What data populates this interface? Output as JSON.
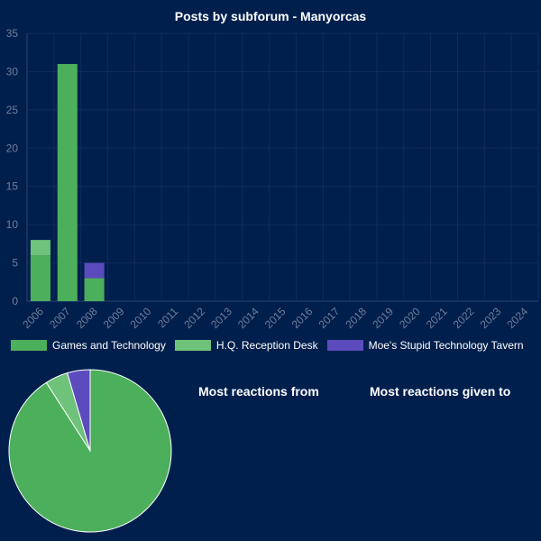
{
  "chart_data": [
    {
      "type": "bar",
      "stacked": true,
      "title": "Posts by subforum - Manyorcas",
      "categories": [
        "2006",
        "2007",
        "2008",
        "2009",
        "2010",
        "2011",
        "2012",
        "2013",
        "2014",
        "2015",
        "2016",
        "2017",
        "2018",
        "2019",
        "2020",
        "2021",
        "2022",
        "2023",
        "2024"
      ],
      "series": [
        {
          "name": "Games and Technology",
          "color": "#4caf5c",
          "values": [
            6,
            31,
            3,
            0,
            0,
            0,
            0,
            0,
            0,
            0,
            0,
            0,
            0,
            0,
            0,
            0,
            0,
            0,
            0
          ]
        },
        {
          "name": "H.Q. Reception Desk",
          "color": "#6fc27a",
          "values": [
            2,
            0,
            0,
            0,
            0,
            0,
            0,
            0,
            0,
            0,
            0,
            0,
            0,
            0,
            0,
            0,
            0,
            0,
            0
          ]
        },
        {
          "name": "Moe's Stupid Technology Tavern",
          "color": "#5b4bbd",
          "values": [
            0,
            0,
            2,
            0,
            0,
            0,
            0,
            0,
            0,
            0,
            0,
            0,
            0,
            0,
            0,
            0,
            0,
            0,
            0
          ]
        }
      ],
      "ylim": [
        0,
        35
      ],
      "yticks": [
        0,
        5,
        10,
        15,
        20,
        25,
        30,
        35
      ],
      "grid": true,
      "legend": "bottom"
    },
    {
      "type": "pie",
      "labels": [
        "Games and Technology",
        "H.Q. Reception Desk",
        "Moe's Stupid Technology Tavern"
      ],
      "values": [
        40,
        2,
        2
      ],
      "colors": [
        "#4caf5c",
        "#6fc27a",
        "#5b4bbd"
      ]
    }
  ],
  "reactions": {
    "from_title": "Most reactions from",
    "to_title": "Most reactions given to"
  }
}
